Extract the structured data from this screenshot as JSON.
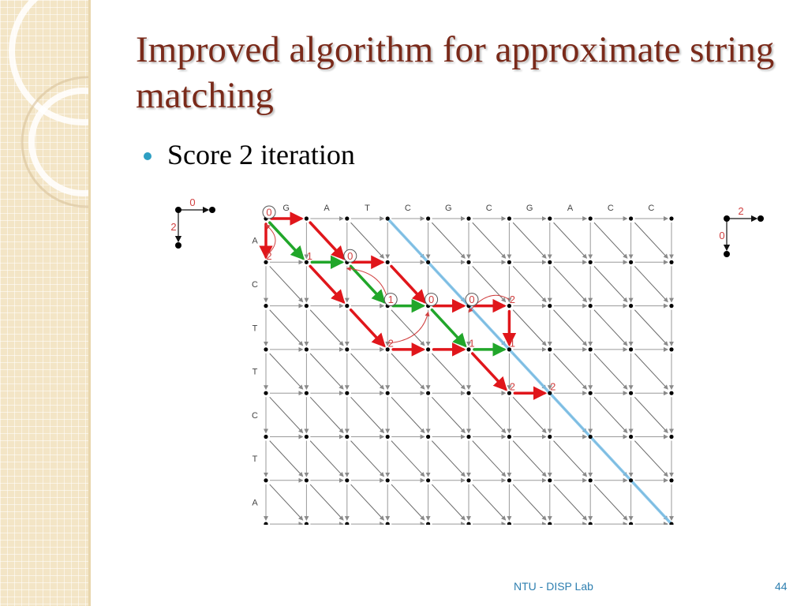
{
  "slide": {
    "title": "Improved algorithm for approximate string matching",
    "bullet": "Score 2 iteration",
    "footer": "NTU - DISP Lab",
    "page_number": "44"
  },
  "diagram": {
    "columns": [
      "G",
      "A",
      "T",
      "C",
      "G",
      "C",
      "G",
      "A",
      "C",
      "C"
    ],
    "rows": [
      "A",
      "C",
      "T",
      "T",
      "C",
      "T",
      "A"
    ],
    "legend_left": {
      "horizontal": "0",
      "vertical": "2"
    },
    "legend_right": {
      "horizontal": "2",
      "vertical": "0"
    },
    "node_labels": [
      {
        "text": "0",
        "row": 0,
        "col": 0,
        "circled": true
      },
      {
        "text": "2",
        "row": 1,
        "col": 0,
        "circled": false
      },
      {
        "text": "1",
        "row": 1,
        "col": 1,
        "circled": false
      },
      {
        "text": "0",
        "row": 1,
        "col": 2,
        "circled": true
      },
      {
        "text": "1",
        "row": 2,
        "col": 3,
        "circled": true
      },
      {
        "text": "0",
        "row": 2,
        "col": 4,
        "circled": true
      },
      {
        "text": "0",
        "row": 2,
        "col": 5,
        "circled": true
      },
      {
        "text": "2",
        "row": 2,
        "col": 6,
        "circled": false
      },
      {
        "text": "2",
        "row": 3,
        "col": 3,
        "circled": false
      },
      {
        "text": "1",
        "row": 3,
        "col": 5,
        "circled": false
      },
      {
        "text": "1",
        "row": 3,
        "col": 6,
        "circled": false
      },
      {
        "text": "2",
        "row": 4,
        "col": 6,
        "circled": false
      },
      {
        "text": "2",
        "row": 4,
        "col": 7,
        "circled": false
      }
    ],
    "highlight_edges": [
      {
        "color": "red",
        "type": "h",
        "row": 0,
        "col": 0
      },
      {
        "color": "red",
        "type": "v",
        "row": 0,
        "col": 0
      },
      {
        "color": "red",
        "type": "d",
        "row": 0,
        "col": 1
      },
      {
        "color": "green",
        "type": "d",
        "row": 0,
        "col": 0
      },
      {
        "color": "green",
        "type": "h",
        "row": 1,
        "col": 1
      },
      {
        "color": "red",
        "type": "h",
        "row": 1,
        "col": 2
      },
      {
        "color": "red",
        "type": "d",
        "row": 1,
        "col": 1
      },
      {
        "color": "green",
        "type": "d",
        "row": 1,
        "col": 2
      },
      {
        "color": "red",
        "type": "d",
        "row": 1,
        "col": 3
      },
      {
        "color": "green",
        "type": "h",
        "row": 2,
        "col": 3
      },
      {
        "color": "red",
        "type": "h",
        "row": 2,
        "col": 4
      },
      {
        "color": "red",
        "type": "h",
        "row": 2,
        "col": 5
      },
      {
        "color": "red",
        "type": "v",
        "row": 2,
        "col": 6
      },
      {
        "color": "red",
        "type": "d",
        "row": 2,
        "col": 2
      },
      {
        "color": "green",
        "type": "d",
        "row": 2,
        "col": 4
      },
      {
        "color": "red",
        "type": "h",
        "row": 3,
        "col": 3
      },
      {
        "color": "red",
        "type": "h",
        "row": 3,
        "col": 4
      },
      {
        "color": "green",
        "type": "h",
        "row": 3,
        "col": 5
      },
      {
        "color": "red",
        "type": "d",
        "row": 3,
        "col": 5
      },
      {
        "color": "red",
        "type": "h",
        "row": 4,
        "col": 6
      }
    ],
    "loop_arrows": [
      {
        "from": [
          2,
          3
        ],
        "to": [
          1,
          2
        ]
      },
      {
        "from": [
          3,
          3
        ],
        "to": [
          2,
          4
        ]
      },
      {
        "from": [
          2,
          6
        ],
        "to": [
          2,
          5
        ]
      },
      {
        "from": [
          1,
          0
        ],
        "to": [
          0,
          0
        ]
      }
    ],
    "colors": {
      "red": "#e0161b",
      "green": "#21a62a",
      "grid": "#9a9a9a",
      "diagonal_line": "#7cc0e8",
      "label_red": "#d04040",
      "title": "#7a2a1a",
      "accent": "#2e9fc3",
      "footer": "#2e7fb0"
    }
  }
}
